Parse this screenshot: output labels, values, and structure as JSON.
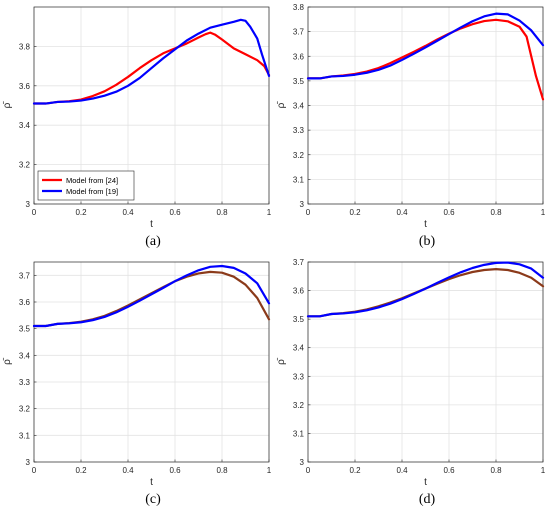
{
  "figure": {
    "captions": [
      "(a)",
      "(b)",
      "(c)",
      "(d)"
    ]
  },
  "chart_data": [
    {
      "type": "line",
      "panel": "(a)",
      "xlabel": "t",
      "ylabel": "ρ̄",
      "xlim": [
        0,
        1
      ],
      "ylim": [
        3,
        4
      ],
      "xticks": [
        "0",
        "0.2",
        "0.4",
        "0.6",
        "0.8",
        "1"
      ],
      "yticks": [
        "3",
        "3.2",
        "3.4",
        "3.6",
        "3.8"
      ],
      "grid": true,
      "legend": {
        "placement": "bottom-left"
      },
      "series": [
        {
          "name": "Model from [24]",
          "color": "#ff0000",
          "x": [
            0,
            0.05,
            0.1,
            0.15,
            0.2,
            0.25,
            0.3,
            0.35,
            0.4,
            0.45,
            0.5,
            0.55,
            0.6,
            0.65,
            0.7,
            0.73,
            0.75,
            0.77,
            0.8,
            0.85,
            0.9,
            0.95,
            0.98,
            1.0
          ],
          "values": [
            3.51,
            3.51,
            3.518,
            3.522,
            3.53,
            3.548,
            3.572,
            3.605,
            3.645,
            3.69,
            3.73,
            3.765,
            3.79,
            3.815,
            3.845,
            3.862,
            3.87,
            3.86,
            3.835,
            3.79,
            3.76,
            3.73,
            3.7,
            3.655
          ]
        },
        {
          "name": "Model from [19]",
          "color": "#0000ff",
          "x": [
            0,
            0.05,
            0.1,
            0.15,
            0.2,
            0.25,
            0.3,
            0.35,
            0.4,
            0.45,
            0.5,
            0.55,
            0.6,
            0.65,
            0.7,
            0.75,
            0.8,
            0.85,
            0.88,
            0.9,
            0.92,
            0.95,
            0.97,
            1.0
          ],
          "values": [
            3.51,
            3.51,
            3.518,
            3.52,
            3.525,
            3.535,
            3.55,
            3.57,
            3.6,
            3.64,
            3.69,
            3.74,
            3.785,
            3.83,
            3.865,
            3.895,
            3.91,
            3.925,
            3.935,
            3.93,
            3.9,
            3.84,
            3.76,
            3.65
          ]
        }
      ]
    },
    {
      "type": "line",
      "panel": "(b)",
      "xlabel": "t",
      "ylabel": "ρ̄",
      "xlim": [
        0,
        1
      ],
      "ylim": [
        3,
        3.8
      ],
      "xticks": [
        "0",
        "0.2",
        "0.4",
        "0.6",
        "0.8",
        "1"
      ],
      "yticks": [
        "3",
        "3.1",
        "3.2",
        "3.3",
        "3.4",
        "3.5",
        "3.6",
        "3.7",
        "3.8"
      ],
      "grid": true,
      "series": [
        {
          "color": "#ff0000",
          "x": [
            0,
            0.05,
            0.1,
            0.15,
            0.2,
            0.25,
            0.3,
            0.35,
            0.4,
            0.45,
            0.5,
            0.55,
            0.6,
            0.65,
            0.7,
            0.75,
            0.8,
            0.85,
            0.9,
            0.93,
            0.95,
            0.97,
            1.0
          ],
          "values": [
            3.51,
            3.51,
            3.518,
            3.522,
            3.528,
            3.538,
            3.552,
            3.572,
            3.595,
            3.618,
            3.642,
            3.668,
            3.692,
            3.713,
            3.73,
            3.743,
            3.748,
            3.742,
            3.72,
            3.68,
            3.6,
            3.52,
            3.425
          ]
        },
        {
          "color": "#0000ff",
          "x": [
            0,
            0.05,
            0.1,
            0.15,
            0.2,
            0.25,
            0.3,
            0.35,
            0.4,
            0.45,
            0.5,
            0.55,
            0.6,
            0.65,
            0.7,
            0.75,
            0.8,
            0.85,
            0.9,
            0.95,
            1.0
          ],
          "values": [
            3.51,
            3.51,
            3.518,
            3.52,
            3.525,
            3.533,
            3.545,
            3.562,
            3.585,
            3.61,
            3.636,
            3.663,
            3.69,
            3.717,
            3.742,
            3.762,
            3.773,
            3.77,
            3.745,
            3.705,
            3.645
          ]
        }
      ]
    },
    {
      "type": "line",
      "panel": "(c)",
      "xlabel": "t",
      "ylabel": "ρ̄",
      "xlim": [
        0,
        1
      ],
      "ylim": [
        3,
        3.75
      ],
      "xticks": [
        "0",
        "0.2",
        "0.4",
        "0.6",
        "0.8",
        "1"
      ],
      "yticks": [
        "3",
        "3.1",
        "3.2",
        "3.3",
        "3.4",
        "3.5",
        "3.6",
        "3.7"
      ],
      "grid": true,
      "series": [
        {
          "color": "#8b3a1a",
          "x": [
            0,
            0.05,
            0.1,
            0.15,
            0.2,
            0.25,
            0.3,
            0.35,
            0.4,
            0.45,
            0.5,
            0.55,
            0.6,
            0.65,
            0.7,
            0.75,
            0.8,
            0.85,
            0.9,
            0.95,
            1.0
          ],
          "values": [
            3.51,
            3.51,
            3.518,
            3.521,
            3.526,
            3.535,
            3.548,
            3.566,
            3.587,
            3.61,
            3.633,
            3.656,
            3.678,
            3.695,
            3.707,
            3.713,
            3.71,
            3.695,
            3.665,
            3.615,
            3.535
          ]
        },
        {
          "color": "#0000ff",
          "x": [
            0,
            0.05,
            0.1,
            0.15,
            0.2,
            0.25,
            0.3,
            0.35,
            0.4,
            0.45,
            0.5,
            0.55,
            0.6,
            0.65,
            0.7,
            0.75,
            0.8,
            0.85,
            0.9,
            0.95,
            1.0
          ],
          "values": [
            3.51,
            3.51,
            3.518,
            3.52,
            3.524,
            3.532,
            3.544,
            3.561,
            3.582,
            3.605,
            3.629,
            3.653,
            3.678,
            3.7,
            3.719,
            3.732,
            3.735,
            3.728,
            3.707,
            3.67,
            3.595
          ]
        }
      ]
    },
    {
      "type": "line",
      "panel": "(d)",
      "xlabel": "t",
      "ylabel": "ρ̄",
      "xlim": [
        0,
        1
      ],
      "ylim": [
        3,
        3.7
      ],
      "xticks": [
        "0",
        "0.2",
        "0.4",
        "0.6",
        "0.8",
        "1"
      ],
      "yticks": [
        "3",
        "3.1",
        "3.2",
        "3.3",
        "3.4",
        "3.5",
        "3.6",
        "3.7"
      ],
      "grid": true,
      "series": [
        {
          "color": "#8b3a1a",
          "x": [
            0,
            0.05,
            0.1,
            0.15,
            0.2,
            0.25,
            0.3,
            0.35,
            0.4,
            0.45,
            0.5,
            0.55,
            0.6,
            0.65,
            0.7,
            0.75,
            0.8,
            0.85,
            0.9,
            0.95,
            1.0
          ],
          "values": [
            3.51,
            3.51,
            3.518,
            3.521,
            3.526,
            3.534,
            3.545,
            3.558,
            3.573,
            3.59,
            3.607,
            3.624,
            3.64,
            3.654,
            3.665,
            3.672,
            3.675,
            3.672,
            3.662,
            3.645,
            3.615
          ]
        },
        {
          "color": "#0000ff",
          "x": [
            0,
            0.05,
            0.1,
            0.15,
            0.2,
            0.25,
            0.3,
            0.35,
            0.4,
            0.45,
            0.5,
            0.55,
            0.6,
            0.65,
            0.7,
            0.75,
            0.8,
            0.85,
            0.9,
            0.95,
            1.0
          ],
          "values": [
            3.51,
            3.51,
            3.518,
            3.52,
            3.524,
            3.531,
            3.541,
            3.554,
            3.57,
            3.588,
            3.607,
            3.627,
            3.646,
            3.664,
            3.679,
            3.69,
            3.697,
            3.698,
            3.692,
            3.677,
            3.645
          ]
        }
      ]
    }
  ]
}
